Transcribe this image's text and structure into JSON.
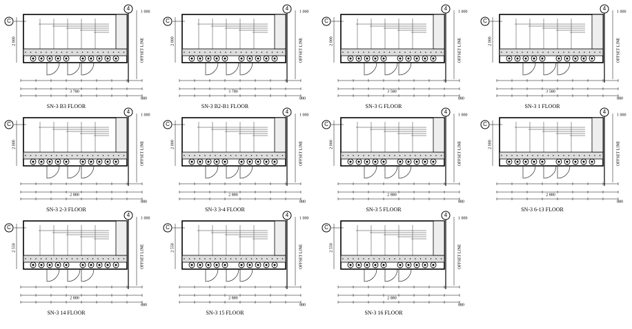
{
  "panels": [
    {
      "title": "SN-3  B3 FLOOR",
      "grid_left": "C",
      "grid_right": "4",
      "top_dim": "1 000",
      "left_dim": "2 000",
      "offset": "OFFSET LINE",
      "total": "3 780",
      "end_dim": "880"
    },
    {
      "title": "SN-3  B2-B1 FLOOR",
      "grid_left": "C",
      "grid_right": "4",
      "top_dim": "1 000",
      "left_dim": "2 000",
      "offset": "OFFSET LINE",
      "total": "3 780",
      "end_dim": "880"
    },
    {
      "title": "SN-3  G FLOOR",
      "grid_left": "C",
      "grid_right": "4",
      "top_dim": "1 000",
      "left_dim": "2 000",
      "offset": "OFFSET LINE",
      "total": "3 580",
      "end_dim": "880"
    },
    {
      "title": "SN-3  1 FLOOR",
      "grid_left": "C",
      "grid_right": "4",
      "top_dim": "1 000",
      "left_dim": "2 000",
      "offset": "OFFSET LINE",
      "total": "3 580",
      "end_dim": "880"
    },
    {
      "title": "SN-3  2-3 FLOOR",
      "grid_left": "C",
      "grid_right": "4",
      "top_dim": "1 000",
      "left_dim": "2 000",
      "offset": "OFFSET LINE",
      "total": "2 880",
      "end_dim": "880"
    },
    {
      "title": "SN-3  3-4 FLOOR",
      "grid_left": "C",
      "grid_right": "4",
      "top_dim": "1 000",
      "left_dim": "2 000",
      "offset": "OFFSET LINE",
      "total": "2 880",
      "end_dim": "880"
    },
    {
      "title": "SN-3  5 FLOOR",
      "grid_left": "C",
      "grid_right": "4",
      "top_dim": "1 000",
      "left_dim": "2 000",
      "offset": "OFFSET LINE",
      "total": "2 880",
      "end_dim": "880"
    },
    {
      "title": "SN-3  6-13 FLOOR",
      "grid_left": "C",
      "grid_right": "4",
      "top_dim": "1 000",
      "left_dim": "2 000",
      "offset": "OFFSET LINE",
      "total": "2 880",
      "end_dim": "880"
    },
    {
      "title": "SN-3  14 FLOOR",
      "grid_left": "C",
      "grid_right": "4",
      "top_dim": "1 000",
      "left_dim": "2 550",
      "offset": "OFFSET LINE",
      "total": "2 880",
      "end_dim": "880"
    },
    {
      "title": "SN-3  15 FLOOR",
      "grid_left": "C",
      "grid_right": "4",
      "top_dim": "1 000",
      "left_dim": "2 550",
      "offset": "OFFSET LINE",
      "total": "2 880",
      "end_dim": "880"
    },
    {
      "title": "SN-3  16 FLOOR",
      "grid_left": "C",
      "grid_right": "4",
      "top_dim": "1 000",
      "left_dim": "2 550",
      "offset": "OFFSET LINE",
      "total": "2 880",
      "end_dim": "880"
    }
  ]
}
